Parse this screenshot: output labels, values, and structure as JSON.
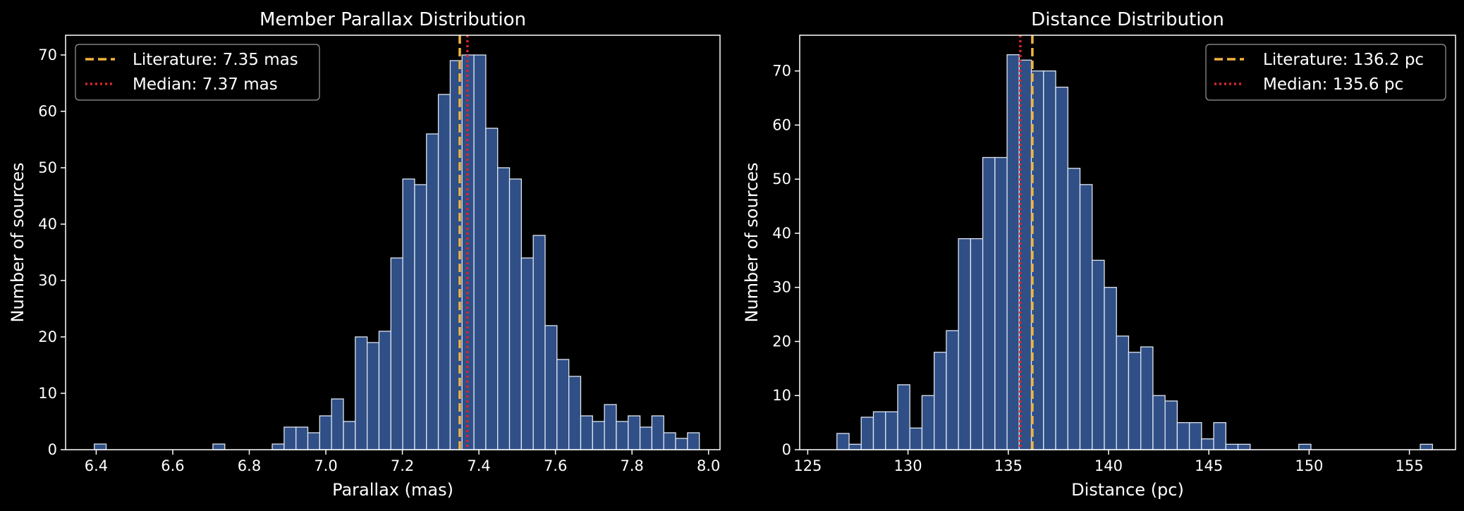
{
  "chart_data": [
    {
      "type": "bar",
      "title": "Member Parallax Distribution",
      "xlabel": "Parallax (mas)",
      "ylabel": "Number of sources",
      "xlim": [
        6.32,
        8.03
      ],
      "ylim": [
        0,
        73.5
      ],
      "xticks": [
        6.4,
        6.6,
        6.8,
        7.0,
        7.2,
        7.4,
        7.6,
        7.8,
        8.0
      ],
      "yticks": [
        0,
        10,
        20,
        30,
        40,
        50,
        60,
        70
      ],
      "bin_start": 6.395,
      "bin_width": 0.031,
      "counts": [
        1,
        0,
        0,
        0,
        0,
        0,
        0,
        0,
        0,
        0,
        1,
        0,
        0,
        0,
        0,
        1,
        4,
        4,
        3,
        6,
        9,
        5,
        20,
        19,
        21,
        34,
        48,
        47,
        56,
        63,
        69,
        70,
        70,
        57,
        50,
        48,
        34,
        38,
        22,
        16,
        13,
        6,
        5,
        8,
        5,
        6,
        4,
        6,
        3,
        2,
        3
      ],
      "bar_color": "#2f4f86",
      "bar_edge": "#dfe6f2",
      "grid": false,
      "legend_position": "upper left",
      "vlines": [
        {
          "label": "Literature: 7.35 mas",
          "x": 7.35,
          "style": "dashed",
          "color": "#f2b33d"
        },
        {
          "label": "Median: 7.37 mas",
          "x": 7.37,
          "style": "dotted",
          "color": "#d9262a"
        }
      ]
    },
    {
      "type": "bar",
      "title": "Distance Distribution",
      "xlabel": "Distance (pc)",
      "ylabel": "Number of sources",
      "xlim": [
        124.6,
        157.3
      ],
      "ylim": [
        0,
        76.6
      ],
      "xticks": [
        125,
        130,
        135,
        140,
        145,
        150,
        155
      ],
      "yticks": [
        0,
        10,
        20,
        30,
        40,
        50,
        60,
        70
      ],
      "bin_start": 125.85,
      "bin_width": 0.606,
      "counts": [
        0,
        3,
        1,
        6,
        7,
        7,
        12,
        4,
        10,
        18,
        22,
        39,
        39,
        54,
        54,
        73,
        72,
        70,
        70,
        67,
        52,
        49,
        35,
        30,
        21,
        18,
        19,
        10,
        9,
        5,
        5,
        2,
        5,
        1,
        1,
        0,
        0,
        0,
        0,
        1,
        0,
        0,
        0,
        0,
        0,
        0,
        0,
        0,
        0,
        1
      ],
      "bar_color": "#2f4f86",
      "bar_edge": "#dfe6f2",
      "grid": false,
      "legend_position": "upper right",
      "vlines": [
        {
          "label": "Literature: 136.2 pc",
          "x": 136.2,
          "style": "dashed",
          "color": "#f2b33d"
        },
        {
          "label": "Median: 135.6 pc",
          "x": 135.6,
          "style": "dotted",
          "color": "#d9262a"
        }
      ]
    }
  ]
}
